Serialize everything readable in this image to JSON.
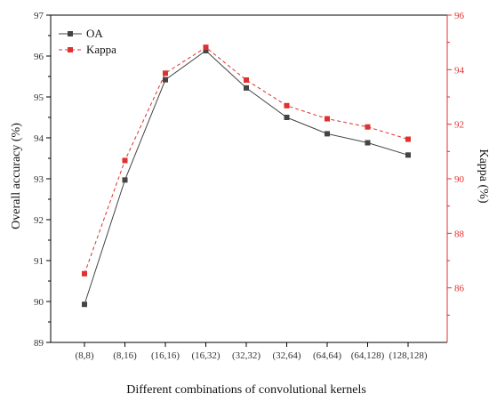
{
  "chart_data": {
    "type": "line",
    "xlabel": "Different combinations of convolutional kernels",
    "ylabel_left": "Overall accuracy (%)",
    "ylabel_right": "Kappa (%)",
    "categories": [
      "(8,8)",
      "(8,16)",
      "(16,16)",
      "(16,32)",
      "(32,32)",
      "(32,64)",
      "(64,64)",
      "(64,128)",
      "(128,128)"
    ],
    "y_left": {
      "lim": [
        89,
        97
      ],
      "ticks": [
        89,
        90,
        91,
        92,
        93,
        94,
        95,
        96,
        97
      ]
    },
    "y_right": {
      "lim": [
        84,
        96
      ],
      "ticks": [
        86,
        88,
        90,
        92,
        94,
        96
      ]
    },
    "grid": false,
    "legend_position": "top-left",
    "series": [
      {
        "name": "OA",
        "axis": "left",
        "color": "#444444",
        "line_style": "solid",
        "marker": "square",
        "values": [
          89.93,
          92.97,
          95.42,
          96.13,
          95.22,
          94.5,
          94.1,
          93.88,
          93.58
        ]
      },
      {
        "name": "Kappa",
        "axis": "right",
        "color": "#e03030",
        "line_style": "dashed",
        "marker": "square",
        "values": [
          86.52,
          90.67,
          93.87,
          94.82,
          93.62,
          92.68,
          92.2,
          91.9,
          91.45
        ]
      }
    ]
  }
}
